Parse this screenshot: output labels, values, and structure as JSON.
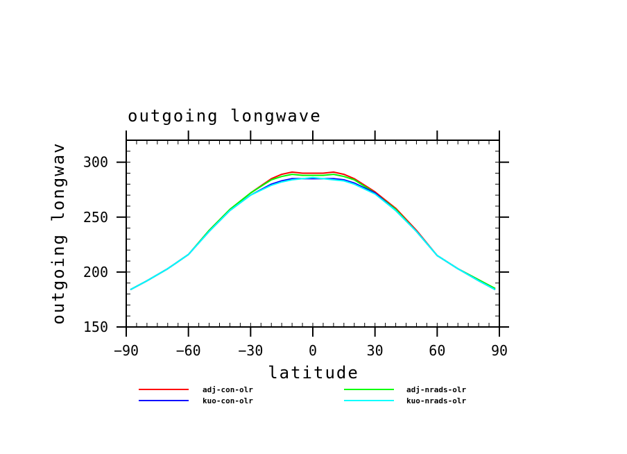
{
  "chart_data": {
    "type": "line",
    "title": "outgoing longwave",
    "xlabel": "latitude",
    "ylabel": "outgoing longwav",
    "xlim": [
      -90,
      90
    ],
    "ylim": [
      150,
      320
    ],
    "xticks": [
      -90,
      -60,
      -30,
      0,
      30,
      60,
      90
    ],
    "xtick_labels": [
      "−90",
      "−60",
      "−30",
      "0",
      "30",
      "60",
      "90"
    ],
    "yticks": [
      150,
      200,
      250,
      300
    ],
    "ytick_labels": [
      "150",
      "200",
      "250",
      "300"
    ],
    "grid": false,
    "legend_position": "bottom",
    "x": [
      -88,
      -80,
      -70,
      -60,
      -50,
      -40,
      -30,
      -20,
      -15,
      -10,
      -5,
      0,
      5,
      10,
      15,
      20,
      30,
      40,
      50,
      60,
      70,
      80,
      88
    ],
    "series": [
      {
        "name": "adj-con-olr",
        "color": "#ff0000",
        "values": [
          184,
          192,
          203,
          216,
          238,
          257,
          272,
          285,
          289,
          291,
          290,
          290,
          290,
          291,
          289,
          285,
          273,
          258,
          238,
          215,
          203,
          193,
          185
        ]
      },
      {
        "name": "adj-nrads-olr",
        "color": "#00ff00",
        "values": [
          184,
          192,
          203,
          216,
          238,
          257,
          272,
          284,
          287,
          289,
          288,
          288,
          288,
          289,
          287,
          284,
          272,
          257,
          237,
          215,
          203,
          193,
          185
        ]
      },
      {
        "name": "kuo-con-olr",
        "color": "#0000ff",
        "values": [
          184,
          192,
          203,
          216,
          237,
          256,
          270,
          280,
          283,
          285,
          285,
          285,
          285,
          285,
          284,
          281,
          272,
          256,
          237,
          215,
          203,
          192,
          184
        ]
      },
      {
        "name": "kuo-nrads-olr",
        "color": "#00ffff",
        "values": [
          184,
          192,
          203,
          216,
          237,
          256,
          270,
          279,
          282,
          284,
          285,
          286,
          285,
          284,
          283,
          280,
          271,
          256,
          237,
          215,
          203,
          192,
          184
        ]
      }
    ]
  }
}
